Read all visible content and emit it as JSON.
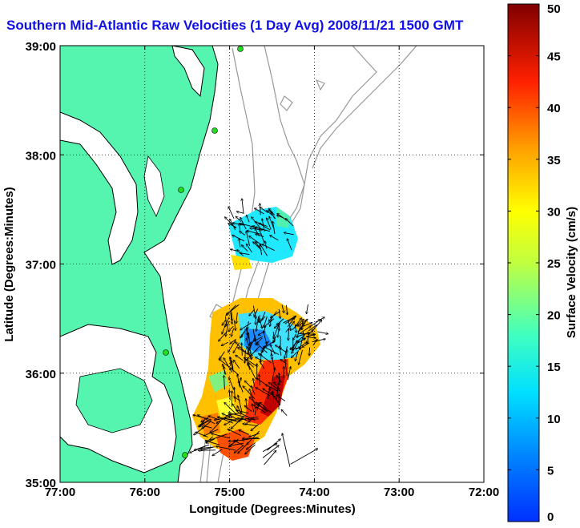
{
  "title": "Southern Mid-Atlantic Raw Velocities (1 Day Avg) 2008/11/21 1500 GMT",
  "map": {
    "xlabel": "Longitude (Degrees:Minutes)",
    "ylabel": "Latitude (Degrees:Minutes)",
    "x_ticks": [
      "77:00",
      "76:00",
      "75:00",
      "74:00",
      "73:00",
      "72:00"
    ],
    "y_ticks": [
      "35:00",
      "36:00",
      "37:00",
      "38:00",
      "39:00"
    ],
    "land_color": "#55f5b0",
    "grid": "dotted"
  },
  "colorbar": {
    "label": "Surface Velocity (cm/s)",
    "ticks": [
      "0",
      "5",
      "10",
      "15",
      "20",
      "25",
      "30",
      "35",
      "40",
      "45",
      "50"
    ],
    "min": 0,
    "max": 50,
    "colormap": "jet"
  },
  "colors": {
    "title": "#1010e8",
    "land": "#55f5b0",
    "bathymetry": "#999999",
    "site_marker": "#22dd22"
  }
}
